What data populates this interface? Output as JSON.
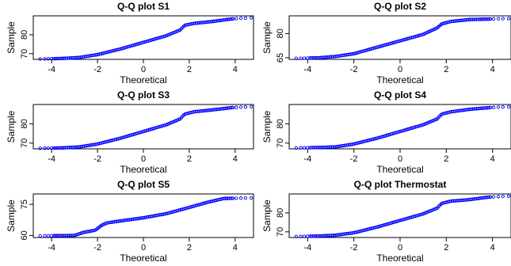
{
  "figure": {
    "layout": "3 rows x 2 columns",
    "marker_color": "#0000ff",
    "frame_color": "#000000"
  },
  "chart_data": [
    {
      "type": "scatter",
      "title": "Q-Q plot S1",
      "xlabel": "Theoretical",
      "ylabel": "Sample",
      "xlim": [
        -4.8,
        4.8
      ],
      "ylim": [
        67,
        90
      ],
      "xticks": [
        -4,
        -2,
        0,
        2,
        4
      ],
      "yticks": [
        70,
        80
      ],
      "quantile_curve": {
        "x": [
          -4.5,
          -3.5,
          -2.8,
          -2.0,
          -1.0,
          0.0,
          1.0,
          1.6,
          1.8,
          2.2,
          3.0,
          3.8,
          4.2,
          4.7
        ],
        "y": [
          67.2,
          67.5,
          68.0,
          69.5,
          72.5,
          76.0,
          79.5,
          82.5,
          85.0,
          86.0,
          87.0,
          88.3,
          88.7,
          88.9
        ]
      }
    },
    {
      "type": "scatter",
      "title": "Q-Q plot S2",
      "xlabel": "Theoretical",
      "ylabel": "Sample",
      "xlim": [
        -4.8,
        4.8
      ],
      "ylim": [
        64,
        91
      ],
      "xticks": [
        -4,
        -2,
        0,
        2,
        4
      ],
      "yticks": [
        65,
        80
      ],
      "quantile_curve": {
        "x": [
          -4.5,
          -3.5,
          -2.8,
          -2.0,
          -1.0,
          0.0,
          1.0,
          1.6,
          1.8,
          2.2,
          3.0,
          3.8,
          4.2,
          4.7
        ],
        "y": [
          64.6,
          65.0,
          65.8,
          67.5,
          71.5,
          75.5,
          79.5,
          83.5,
          86.0,
          87.5,
          88.7,
          89.0,
          89.2,
          89.3
        ]
      }
    },
    {
      "type": "scatter",
      "title": "Q-Q plot S3",
      "xlabel": "Theoretical",
      "ylabel": "Sample",
      "xlim": [
        -4.8,
        4.8
      ],
      "ylim": [
        67,
        90
      ],
      "xticks": [
        -4,
        -2,
        0,
        2,
        4
      ],
      "yticks": [
        70,
        80
      ],
      "quantile_curve": {
        "x": [
          -4.5,
          -3.5,
          -2.8,
          -2.0,
          -1.0,
          0.0,
          1.0,
          1.6,
          1.8,
          2.2,
          3.0,
          3.8,
          4.2,
          4.7
        ],
        "y": [
          67.3,
          67.5,
          68.0,
          69.5,
          72.5,
          76.0,
          79.5,
          82.5,
          85.0,
          86.2,
          87.2,
          88.3,
          88.6,
          88.8
        ]
      }
    },
    {
      "type": "scatter",
      "title": "Q-Q plot S4",
      "xlabel": "Theoretical",
      "ylabel": "Sample",
      "xlim": [
        -4.8,
        4.8
      ],
      "ylim": [
        67,
        90
      ],
      "xticks": [
        -4,
        -2,
        0,
        2,
        4
      ],
      "yticks": [
        70,
        80
      ],
      "quantile_curve": {
        "x": [
          -4.5,
          -3.5,
          -2.8,
          -2.0,
          -1.0,
          0.0,
          1.0,
          1.6,
          1.8,
          2.2,
          3.0,
          3.8,
          4.2,
          4.7
        ],
        "y": [
          67.5,
          67.7,
          68.0,
          69.5,
          72.5,
          76.0,
          79.5,
          82.5,
          85.0,
          86.2,
          87.5,
          88.3,
          88.6,
          88.8
        ]
      }
    },
    {
      "type": "scatter",
      "title": "Q-Q plot S5",
      "xlabel": "Theoretical",
      "ylabel": "Sample",
      "xlim": [
        -4.8,
        4.8
      ],
      "ylim": [
        59,
        80
      ],
      "xticks": [
        -4,
        -2,
        0,
        2,
        4
      ],
      "yticks": [
        60,
        75
      ],
      "quantile_curve": {
        "x": [
          -4.5,
          -3.5,
          -3.0,
          -2.6,
          -2.1,
          -1.8,
          -1.6,
          -1.0,
          0.0,
          1.0,
          2.0,
          2.8,
          3.5,
          4.2,
          4.7
        ],
        "y": [
          59.8,
          59.9,
          60.0,
          61.5,
          62.5,
          65.0,
          66.0,
          67.0,
          68.5,
          70.5,
          73.5,
          76.0,
          77.8,
          78.0,
          78.1
        ]
      }
    },
    {
      "type": "scatter",
      "title": "Q-Q plot Thermostat",
      "xlabel": "Theoretical",
      "ylabel": "Sample",
      "xlim": [
        -4.8,
        4.8
      ],
      "ylim": [
        67,
        90
      ],
      "xticks": [
        -4,
        -2,
        0,
        2,
        4
      ],
      "yticks": [
        70,
        80
      ],
      "quantile_curve": {
        "x": [
          -4.5,
          -3.5,
          -2.8,
          -2.0,
          -1.0,
          0.0,
          1.0,
          1.6,
          1.8,
          2.2,
          3.0,
          3.8,
          4.2,
          4.7
        ],
        "y": [
          67.5,
          67.8,
          68.2,
          69.5,
          72.5,
          76.0,
          79.5,
          82.5,
          85.0,
          86.2,
          87.0,
          88.3,
          88.6,
          88.8
        ]
      }
    }
  ]
}
